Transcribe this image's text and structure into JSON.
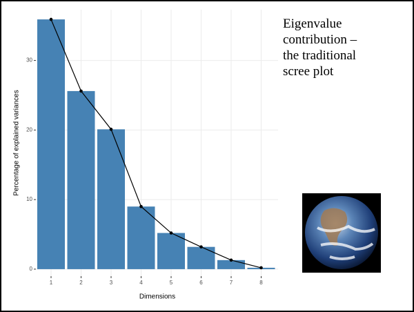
{
  "chart_data": {
    "type": "bar",
    "annotation": [
      "Eigenvalue",
      "contribution –",
      "the traditional",
      "scree plot"
    ],
    "x_label": "Dimensions",
    "y_label": "Percentage of explained variances",
    "categories": [
      "1",
      "2",
      "3",
      "4",
      "5",
      "6",
      "7",
      "8"
    ],
    "values": [
      35.9,
      25.6,
      20.1,
      9.0,
      5.2,
      3.2,
      1.3,
      0.2
    ],
    "color": "#4682b4",
    "line_color": "#000000",
    "ylim": [
      -1,
      37.3
    ],
    "yticks": [
      0,
      10,
      20,
      30
    ],
    "grid": true
  }
}
